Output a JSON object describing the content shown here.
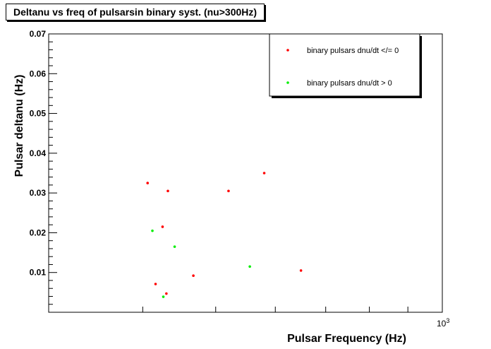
{
  "chart_data": {
    "type": "scatter",
    "title": "Deltanu vs freq of pulsarsin binary syst. (nu>300Hz)",
    "xlabel": "Pulsar Frequency (Hz)",
    "ylabel": "Pulsar deltanu (Hz)",
    "x_scale": "log",
    "xlim": [
      300,
      1000
    ],
    "ylim": [
      0,
      0.07
    ],
    "x_tick_labels": [
      {
        "value": 1000,
        "base": "10",
        "exponent": "3"
      }
    ],
    "y_ticks": [
      0.01,
      0.02,
      0.03,
      0.04,
      0.05,
      0.06,
      0.07
    ],
    "y_tick_labels": [
      "0.01",
      "0.02",
      "0.03",
      "0.04",
      "0.05",
      "0.06",
      "0.07"
    ],
    "grid": false,
    "legend_position": "top-right",
    "series": [
      {
        "name": "binary pulsars dnu/dt </= 0",
        "color": "#ff0000",
        "points": [
          {
            "x": 406,
            "y": 0.0325
          },
          {
            "x": 432,
            "y": 0.0305
          },
          {
            "x": 520,
            "y": 0.0305
          },
          {
            "x": 580,
            "y": 0.035
          },
          {
            "x": 425,
            "y": 0.0215
          },
          {
            "x": 467,
            "y": 0.0092
          },
          {
            "x": 649,
            "y": 0.0105
          },
          {
            "x": 416,
            "y": 0.0071
          },
          {
            "x": 430,
            "y": 0.0047
          }
        ]
      },
      {
        "name": "binary pulsars dnu/dt > 0",
        "color": "#00ee00",
        "points": [
          {
            "x": 412,
            "y": 0.0205
          },
          {
            "x": 441,
            "y": 0.0165
          },
          {
            "x": 555,
            "y": 0.0115
          },
          {
            "x": 426,
            "y": 0.0039
          }
        ]
      }
    ]
  }
}
